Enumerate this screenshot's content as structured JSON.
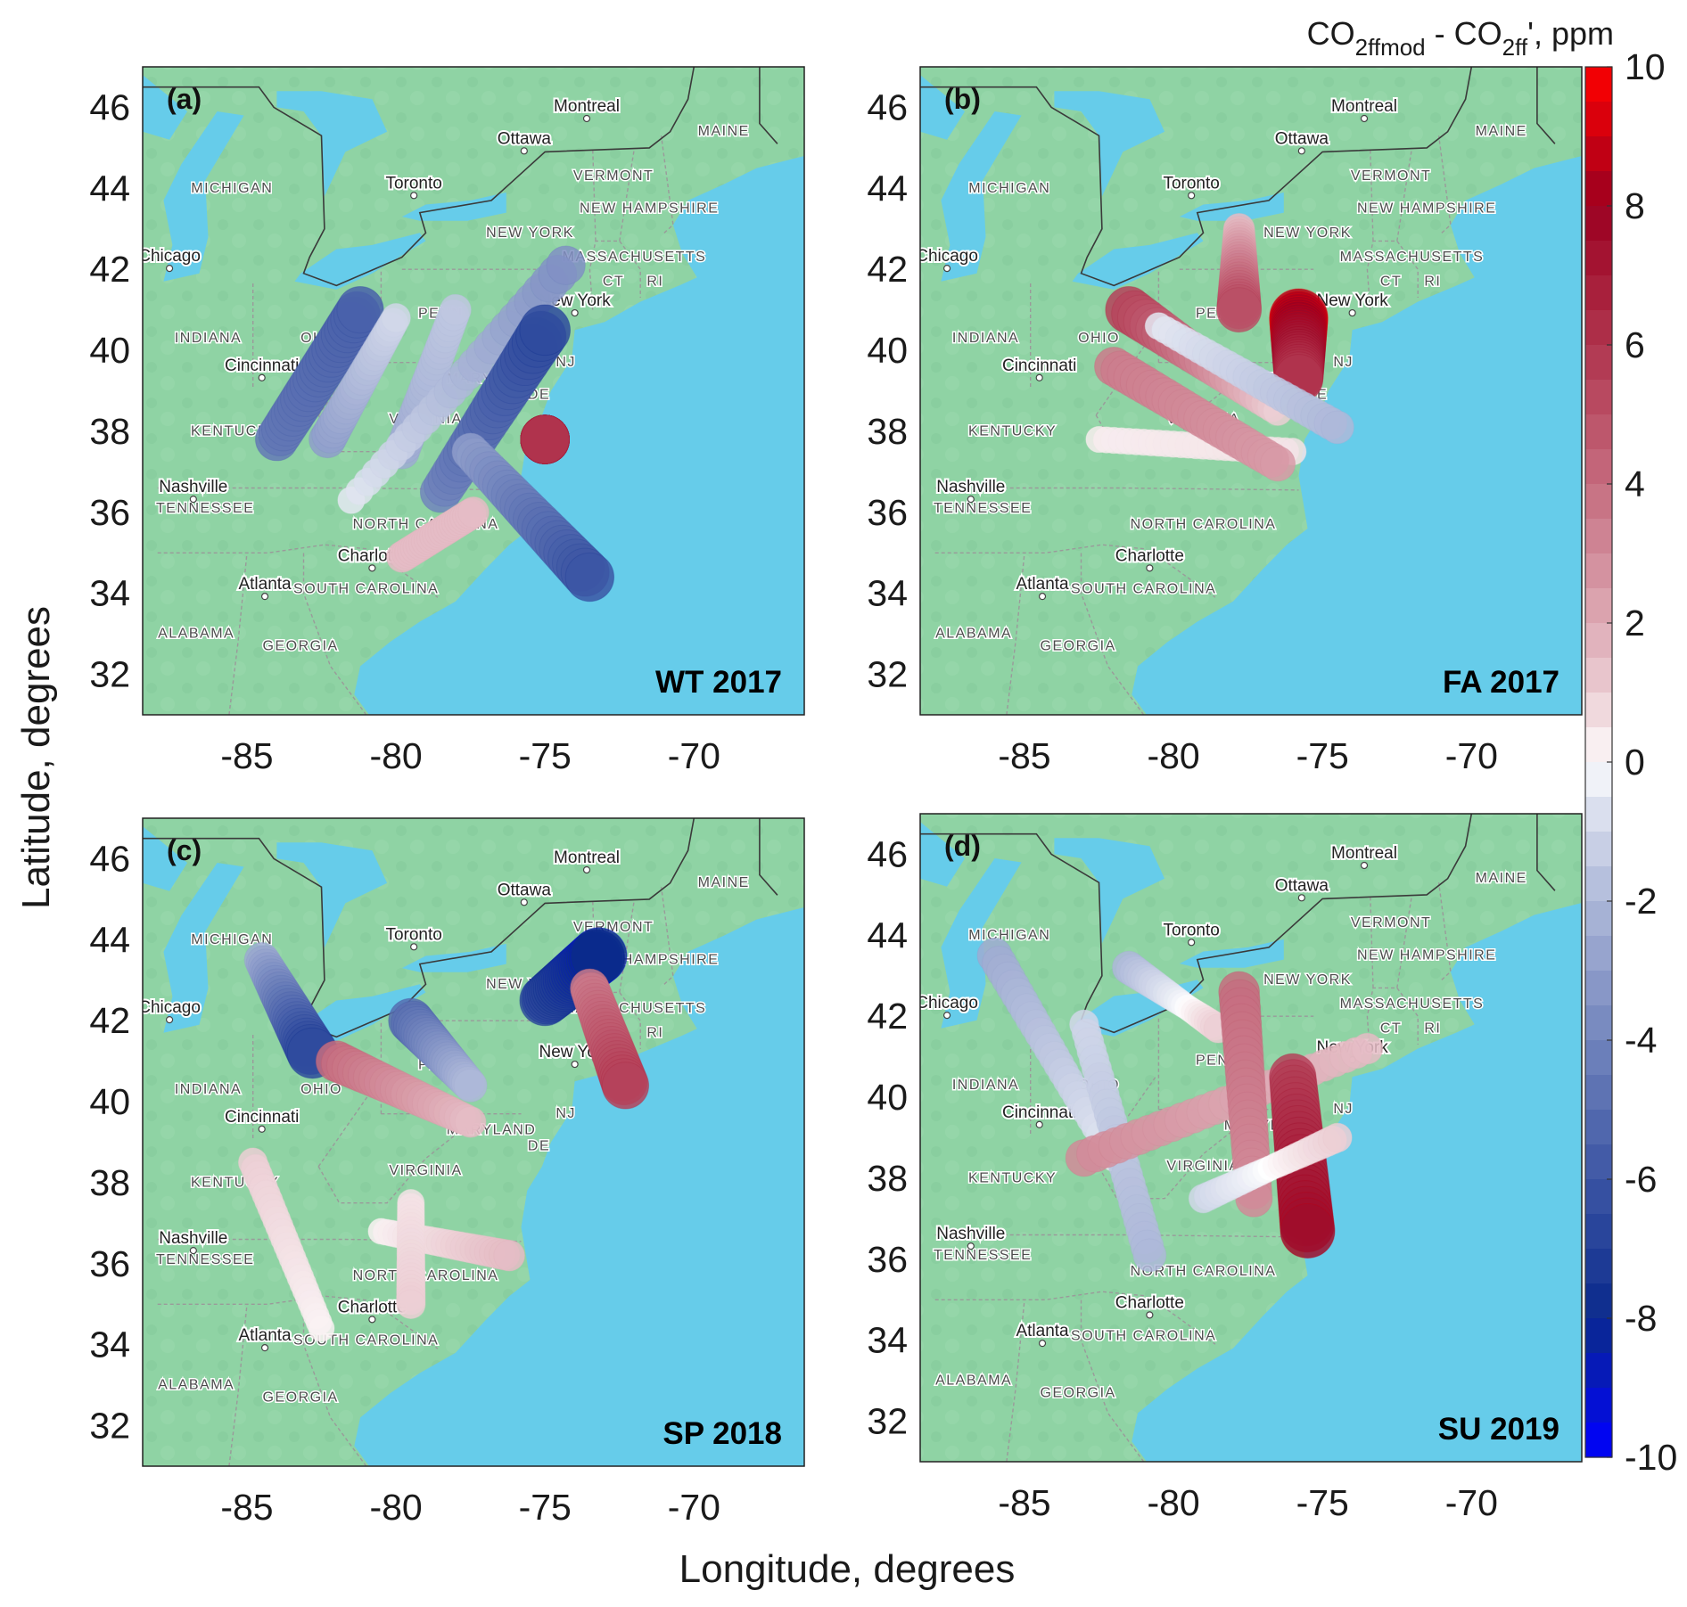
{
  "figure": {
    "xlabel": "Longitude, degrees",
    "ylabel": "Latitude, degrees",
    "x_ticks": [
      -85,
      -80,
      -75,
      -70
    ],
    "y_ticks": [
      46,
      44,
      42,
      40,
      38,
      36,
      34,
      32
    ]
  },
  "colorbar": {
    "title_main": "CO",
    "title_sub1": "2ffmod",
    "title_mid": " - CO",
    "title_sub2": "2ff",
    "title_end": "', ppm",
    "ticks": [
      10,
      8,
      6,
      4,
      2,
      0,
      -2,
      -4,
      -6,
      -8,
      -10
    ],
    "range": [
      -10,
      10
    ],
    "colors": {
      "min": "#0000ff",
      "mid": "#ffffff",
      "max": "#ff0000",
      "neg_dark": "#0a2a8c",
      "pos_dark": "#9b0020"
    }
  },
  "map_style": {
    "land": "#8fd3a4",
    "water": "#66ccea",
    "border": "#3a3a3a",
    "state_line": "#9a9a9a"
  },
  "map_labels": {
    "cities": [
      "Montreal",
      "Ottawa",
      "Toronto",
      "Chicago",
      "New York",
      "Cincinnati",
      "Nashville",
      "Charlotte",
      "Atlanta"
    ],
    "states": [
      "MAINE",
      "VERMONT",
      "MICHIGAN",
      "NEW HAMPSHIRE",
      "NEW YORK",
      "MASSACHUSETTS",
      "CT",
      "RI",
      "INDIANA",
      "OHIO",
      "KENTUCKY",
      "TENNESSEE",
      "NORTH CAROLINA",
      "SOUTH CAROLINA",
      "ALABAMA",
      "GEORGIA",
      "VIRGINIA",
      "PENN",
      "NJ",
      "DE",
      "MARYLAND"
    ]
  },
  "panels": [
    {
      "id": "a",
      "letter": "(a)",
      "season": "WT 2017"
    },
    {
      "id": "b",
      "letter": "(b)",
      "season": "FA 2017"
    },
    {
      "id": "c",
      "letter": "(c)",
      "season": "SP 2018"
    },
    {
      "id": "d",
      "letter": "(d)",
      "season": "SU 2019"
    }
  ],
  "chart_data": {
    "type": "scatter",
    "value_label": "CO2ffmod - CO2ff', ppm",
    "xlim": [
      -88.5,
      -66.3
    ],
    "ylim": [
      31,
      47
    ],
    "panels": [
      {
        "panel": "a",
        "season": "WT 2017",
        "flights": [
          {
            "lon": [
              -84.0,
              -81.2
            ],
            "lat": [
              37.8,
              41.0
            ],
            "val": [
              -4.5,
              -5.5
            ]
          },
          {
            "lon": [
              -82.3,
              -80.0
            ],
            "lat": [
              37.8,
              40.8
            ],
            "val": [
              -3.0,
              -1.0
            ]
          },
          {
            "lon": [
              -79.8,
              -78.0
            ],
            "lat": [
              37.5,
              41.0
            ],
            "val": [
              -2.5,
              -1.5
            ]
          },
          {
            "lon": [
              -81.5,
              -74.3
            ],
            "lat": [
              36.3,
              42.1
            ],
            "val": [
              -0.5,
              -3.5
            ]
          },
          {
            "lon": [
              -78.5,
              -75.0
            ],
            "lat": [
              36.5,
              40.5
            ],
            "val": [
              -4.0,
              -6.5
            ]
          },
          {
            "lon": [
              -77.5,
              -73.5
            ],
            "lat": [
              37.5,
              34.4
            ],
            "val": [
              -3.0,
              -6.0
            ]
          },
          {
            "lon": [
              -75.0,
              -75.0
            ],
            "lat": [
              37.8,
              37.8
            ],
            "val": [
              6.0,
              6.0
            ]
          },
          {
            "lon": [
              -79.8,
              -77.4
            ],
            "lat": [
              34.9,
              36.0
            ],
            "val": [
              1.5,
              1.5
            ]
          }
        ]
      },
      {
        "panel": "b",
        "season": "FA 2017",
        "flights": [
          {
            "lon": [
              -82.5,
              -76.0
            ],
            "lat": [
              37.8,
              37.5
            ],
            "val": [
              0.3,
              0.5
            ]
          },
          {
            "lon": [
              -82.0,
              -76.5
            ],
            "lat": [
              39.6,
              37.2
            ],
            "val": [
              3.5,
              2.5
            ]
          },
          {
            "lon": [
              -81.5,
              -76.5
            ],
            "lat": [
              41.0,
              38.5
            ],
            "val": [
              5.5,
              1.0
            ]
          },
          {
            "lon": [
              -77.8,
              -77.8
            ],
            "lat": [
              43.0,
              41.0
            ],
            "val": [
              1.5,
              5.0
            ]
          },
          {
            "lon": [
              -75.8,
              -75.8
            ],
            "lat": [
              40.8,
              39.3
            ],
            "val": [
              8.5,
              6.0
            ]
          },
          {
            "lon": [
              -80.5,
              -74.5
            ],
            "lat": [
              40.6,
              38.1
            ],
            "val": [
              -0.5,
              -2.0
            ]
          }
        ]
      },
      {
        "panel": "c",
        "season": "SP 2018",
        "flights": [
          {
            "lon": [
              -84.5,
              -82.8
            ],
            "lat": [
              43.5,
              41.2
            ],
            "val": [
              -2.5,
              -6.5
            ]
          },
          {
            "lon": [
              -82.0,
              -77.5
            ],
            "lat": [
              41.0,
              39.5
            ],
            "val": [
              4.0,
              1.5
            ]
          },
          {
            "lon": [
              -79.5,
              -77.5
            ],
            "lat": [
              42.0,
              40.4
            ],
            "val": [
              -5.0,
              -2.0
            ]
          },
          {
            "lon": [
              -75.0,
              -73.2
            ],
            "lat": [
              42.5,
              43.6
            ],
            "val": [
              -6.5,
              -8.0
            ]
          },
          {
            "lon": [
              -73.5,
              -72.3
            ],
            "lat": [
              42.8,
              40.4
            ],
            "val": [
              3.5,
              5.5
            ]
          },
          {
            "lon": [
              -84.8,
              -82.5
            ],
            "lat": [
              38.5,
              34.4
            ],
            "val": [
              1.0,
              0.2
            ]
          },
          {
            "lon": [
              -80.5,
              -76.2
            ],
            "lat": [
              36.8,
              36.2
            ],
            "val": [
              0.2,
              1.5
            ]
          },
          {
            "lon": [
              -79.5,
              -79.5
            ],
            "lat": [
              37.5,
              35.0
            ],
            "val": [
              0.5,
              1.0
            ]
          }
        ]
      },
      {
        "panel": "d",
        "season": "SU 2019",
        "flights": [
          {
            "lon": [
              -86.0,
              -82.0
            ],
            "lat": [
              43.5,
              38.5
            ],
            "val": [
              -2.5,
              -0.5
            ]
          },
          {
            "lon": [
              -83.0,
              -80.8
            ],
            "lat": [
              41.8,
              36.1
            ],
            "val": [
              -1.0,
              -2.0
            ]
          },
          {
            "lon": [
              -81.5,
              -78.5
            ],
            "lat": [
              43.2,
              41.7
            ],
            "val": [
              -2.0,
              1.0
            ]
          },
          {
            "lon": [
              -83.0,
              -73.5
            ],
            "lat": [
              38.5,
              41.2
            ],
            "val": [
              3.0,
              1.5
            ]
          },
          {
            "lon": [
              -77.8,
              -77.3
            ],
            "lat": [
              42.6,
              37.5
            ],
            "val": [
              4.0,
              3.0
            ]
          },
          {
            "lon": [
              -76.0,
              -75.5
            ],
            "lat": [
              40.5,
              36.7
            ],
            "val": [
              5.5,
              7.5
            ]
          },
          {
            "lon": [
              -79.0,
              -74.5
            ],
            "lat": [
              37.5,
              39.0
            ],
            "val": [
              -1.0,
              1.0
            ]
          }
        ]
      }
    ]
  }
}
